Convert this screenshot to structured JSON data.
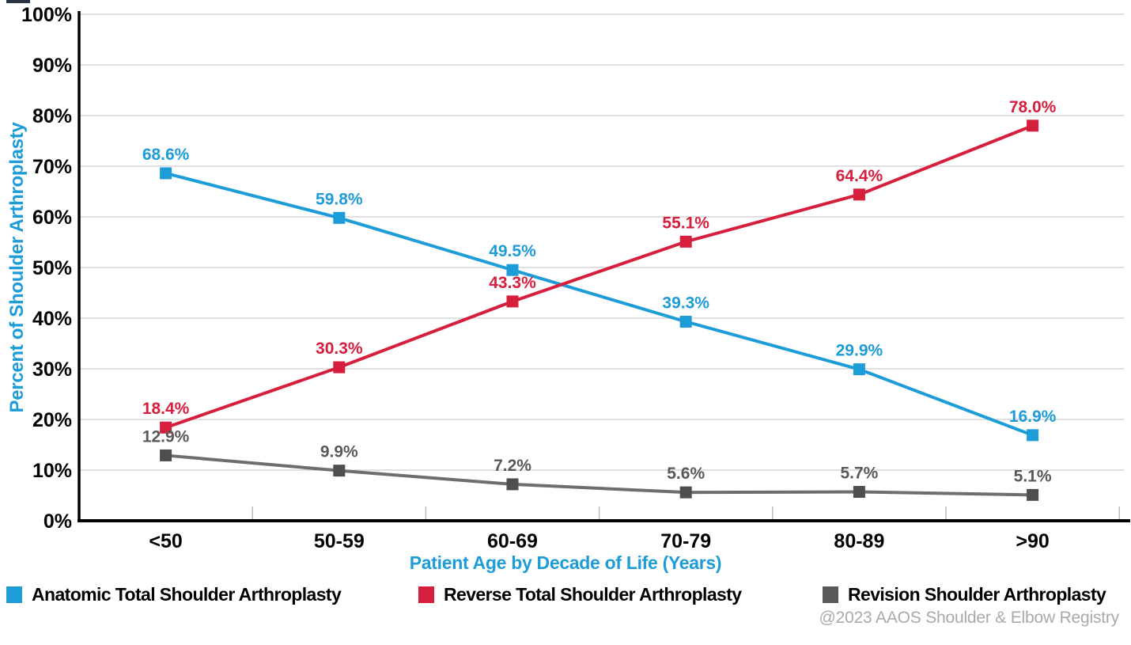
{
  "chart_data": {
    "type": "line",
    "title": "",
    "xlabel": "Patient Age by Decade of Life (Years)",
    "ylabel": "Percent of Shoulder Arthroplasty",
    "categories": [
      "<50",
      "50-59",
      "60-69",
      "70-79",
      "80-89",
      ">90"
    ],
    "y_tick_labels": [
      "0%",
      "10%",
      "20%",
      "30%",
      "40%",
      "50%",
      "60%",
      "70%",
      "80%",
      "90%",
      "100%"
    ],
    "ylim": [
      0,
      100
    ],
    "grid": "horizontal gridlines every 10%",
    "legend_position": "bottom",
    "marker": "square",
    "series": [
      {
        "name": "Anatomic Total Shoulder Arthroplasty",
        "color": "#1D9CD8",
        "values": [
          68.6,
          59.8,
          49.5,
          39.3,
          29.9,
          16.9
        ],
        "labels": [
          "68.6%",
          "59.8%",
          "49.5%",
          "39.3%",
          "29.9%",
          "16.9%"
        ]
      },
      {
        "name": "Reverse Total Shoulder Arthroplasty",
        "color": "#D51F3C",
        "values": [
          18.4,
          30.3,
          43.3,
          55.1,
          64.4,
          78.0
        ],
        "labels": [
          "18.4%",
          "30.3%",
          "43.3%",
          "55.1%",
          "64.4%",
          "78.0%"
        ]
      },
      {
        "name": "Revision Shoulder Arthroplasty",
        "color": "#58595B",
        "line_color": "#6D6E71",
        "marker_color": "#4D4E50",
        "label_color": "#595959",
        "values": [
          12.9,
          9.9,
          7.2,
          5.6,
          5.7,
          5.1
        ],
        "labels": [
          "12.9%",
          "9.9%",
          "7.2%",
          "5.6%",
          "5.7%",
          "5.1%"
        ]
      }
    ],
    "attribution": "@2023 AAOS Shoulder & Elbow Registry",
    "axis_color": "#000000",
    "gridline_color": "#D6D6D6",
    "tick_color": "#BFBFBF"
  }
}
